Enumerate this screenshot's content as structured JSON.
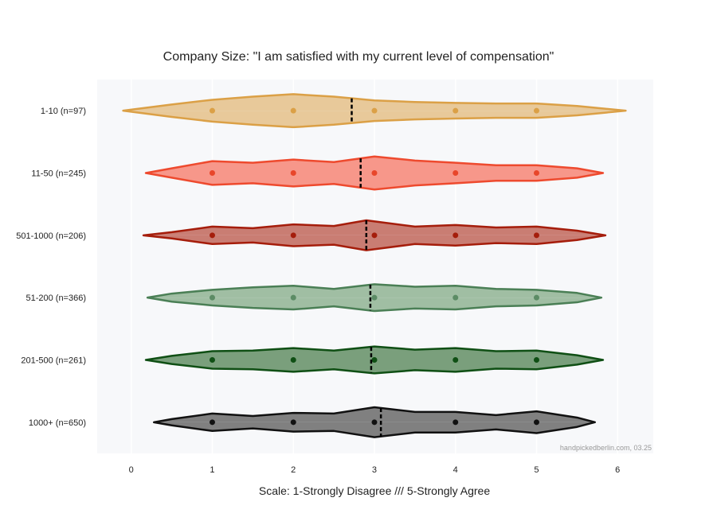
{
  "chart_data": {
    "type": "violin",
    "title": "Company Size: \"I am satisfied with my current level of compensation\"",
    "x_label": "Scale: 1-Strongly Disagree /// 5-Strongly Agree",
    "annotation": "handpickedberlin.com, 03.25",
    "xlim": [
      -0.42,
      6.44
    ],
    "xticks": [
      0,
      1,
      2,
      3,
      4,
      5,
      6
    ],
    "grid": true,
    "series": [
      {
        "name": "1-10 (n=97)",
        "color": "#dba046",
        "fill": "#e8c99a",
        "point_color": "#dba046",
        "mean": 2.72,
        "points": [
          1,
          2,
          3,
          4,
          5
        ],
        "density_x": [
          -0.1,
          0.5,
          1,
          1.5,
          2,
          2.5,
          3,
          3.5,
          4,
          4.5,
          5,
          5.5,
          6.1
        ],
        "density": [
          0,
          0.2,
          0.35,
          0.45,
          0.53,
          0.45,
          0.33,
          0.28,
          0.25,
          0.23,
          0.23,
          0.15,
          0
        ]
      },
      {
        "name": "11-50 (n=245)",
        "color": "#ee4a2e",
        "fill": "#f7978a",
        "point_color": "#e8462a",
        "mean": 2.83,
        "points": [
          1,
          2,
          3,
          4,
          5
        ],
        "density_x": [
          0.18,
          0.5,
          1,
          1.5,
          2,
          2.5,
          3,
          3.5,
          4,
          4.5,
          5,
          5.5,
          5.82
        ],
        "density": [
          0,
          0.15,
          0.38,
          0.33,
          0.43,
          0.35,
          0.53,
          0.4,
          0.33,
          0.25,
          0.25,
          0.15,
          0
        ]
      },
      {
        "name": "501-1000 (n=206)",
        "color": "#a51d0b",
        "fill": "#c97d73",
        "point_color": "#a51d0b",
        "mean": 2.9,
        "points": [
          1,
          2,
          3,
          4,
          5
        ],
        "density_x": [
          0.15,
          0.5,
          1,
          1.5,
          2,
          2.5,
          2.9,
          3.5,
          4,
          4.5,
          5,
          5.5,
          5.85
        ],
        "density": [
          0,
          0.1,
          0.28,
          0.23,
          0.35,
          0.3,
          0.48,
          0.28,
          0.33,
          0.25,
          0.28,
          0.15,
          0
        ]
      },
      {
        "name": "51-200 (n=366)",
        "color": "#4a7f55",
        "fill": "#a0bea3",
        "point_color": "#5c8c65",
        "mean": 2.95,
        "points": [
          1,
          2,
          3,
          4,
          5
        ],
        "density_x": [
          0.2,
          0.5,
          1,
          1.5,
          2,
          2.5,
          3,
          3.5,
          4,
          4.5,
          5,
          5.5,
          5.8
        ],
        "density": [
          0,
          0.13,
          0.25,
          0.33,
          0.38,
          0.28,
          0.43,
          0.35,
          0.38,
          0.28,
          0.25,
          0.15,
          0
        ]
      },
      {
        "name": "201-500 (n=261)",
        "color": "#0f4f14",
        "fill": "#7a9f7c",
        "point_color": "#0f4f14",
        "mean": 2.96,
        "points": [
          1,
          2,
          3,
          4,
          5
        ],
        "density_x": [
          0.18,
          0.5,
          1,
          1.5,
          2,
          2.5,
          3,
          3.5,
          4,
          4.5,
          5,
          5.5,
          5.82
        ],
        "density": [
          0,
          0.13,
          0.28,
          0.3,
          0.38,
          0.3,
          0.43,
          0.33,
          0.38,
          0.28,
          0.3,
          0.15,
          0
        ]
      },
      {
        "name": "1000+ (n=650)",
        "color": "#111111",
        "fill": "#808080",
        "point_color": "#111111",
        "mean": 3.08,
        "points": [
          1,
          2,
          3,
          4,
          5
        ],
        "density_x": [
          0.28,
          0.5,
          1,
          1.5,
          2,
          2.5,
          3,
          3.5,
          4,
          4.5,
          5,
          5.5,
          5.72
        ],
        "density": [
          0,
          0.1,
          0.28,
          0.2,
          0.3,
          0.28,
          0.48,
          0.33,
          0.33,
          0.23,
          0.35,
          0.15,
          0
        ]
      }
    ]
  }
}
